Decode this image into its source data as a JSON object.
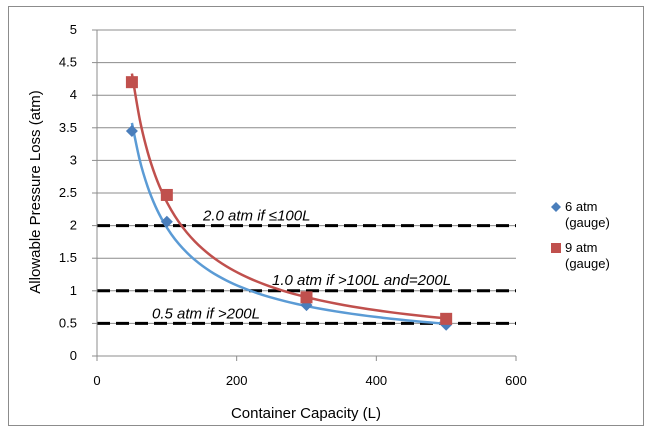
{
  "chart_data": {
    "type": "scatter",
    "xlabel": "Container Capacity (L)",
    "ylabel": "Allowable Pressure Loss (atm)",
    "xlim": [
      0,
      600
    ],
    "ylim": [
      0,
      5
    ],
    "xticks": [
      0,
      200,
      400,
      600
    ],
    "yticks": [
      0,
      0.5,
      1,
      1.5,
      2,
      2.5,
      3,
      3.5,
      4,
      4.5,
      5
    ],
    "grid": "horizontal",
    "legend": "right",
    "series": [
      {
        "name": "6 atm (gauge)",
        "name_lines": [
          "6 atm",
          "(gauge)"
        ],
        "marker": "diamond",
        "color": "#4a7ebb",
        "line_color": "#5b9bd5",
        "x": [
          50,
          100,
          300,
          500
        ],
        "y": [
          3.45,
          2.06,
          0.78,
          0.48
        ]
      },
      {
        "name": "9 atm (gauge)",
        "name_lines": [
          "9 atm",
          "(gauge)"
        ],
        "marker": "square",
        "color": "#c0504d",
        "line_color": "#c0504d",
        "x": [
          50,
          100,
          300,
          500
        ],
        "y": [
          4.2,
          2.47,
          0.9,
          0.57
        ]
      }
    ],
    "reference_lines": [
      {
        "y": 2.0,
        "label": "2.0  atm if ≤100L"
      },
      {
        "y": 1.0,
        "label": "1.0  atm if >100L and=200L"
      },
      {
        "y": 0.5,
        "label": "0.5  atm if >200L"
      }
    ]
  }
}
